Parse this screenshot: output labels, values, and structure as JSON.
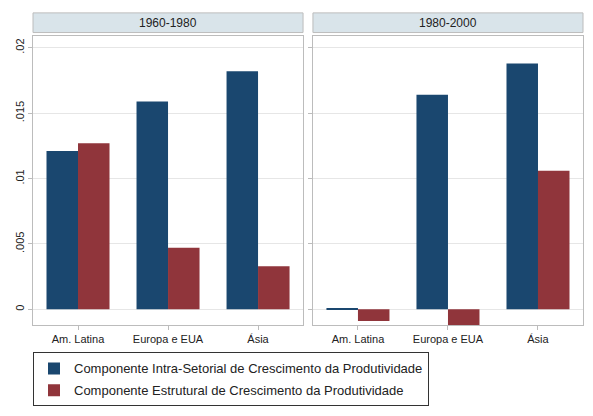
{
  "chart_data": [
    {
      "type": "bar",
      "title": "1960-1980",
      "categories": [
        "Am. Latina",
        "Europa e EUA",
        "Ásia"
      ],
      "series": [
        {
          "name": "Componente Intra-Setorial de Crescimento da Produtividade",
          "color": "#1a476f",
          "values": [
            0.0121,
            0.0159,
            0.0182
          ]
        },
        {
          "name": "Componente Estrutural de Crescimento da Produtividade",
          "color": "#90353b",
          "values": [
            0.0127,
            0.0047,
            0.0033
          ]
        }
      ],
      "ylim": [
        -0.0012,
        0.0209
      ],
      "yticks": [
        0,
        {
          "value": 0.005,
          "label": ".005"
        },
        {
          "value": 0.01,
          "label": ".01"
        },
        {
          "value": 0.015,
          "label": ".015"
        },
        {
          "value": 0.02,
          "label": ".02"
        }
      ],
      "grid": true,
      "legend": "bottom"
    },
    {
      "type": "bar",
      "title": "1980-2000",
      "categories": [
        "Am. Latina",
        "Europa e EUA",
        "Ásia"
      ],
      "series": [
        {
          "name": "Componente Intra-Setorial de Crescimento da Produtividade",
          "color": "#1a476f",
          "values": [
            0.0001,
            0.0164,
            0.0188
          ]
        },
        {
          "name": "Componente Estrutural de Crescimento da Produtividade",
          "color": "#90353b",
          "values": [
            -0.0009,
            -0.0012,
            0.0106
          ]
        }
      ],
      "ylim": [
        -0.0012,
        0.0209
      ],
      "yticks": [
        0,
        {
          "value": 0.005,
          "label": ".005"
        },
        {
          "value": 0.01,
          "label": ".01"
        },
        {
          "value": 0.015,
          "label": ".015"
        },
        {
          "value": 0.02,
          "label": ".02"
        }
      ],
      "grid": true,
      "legend": "bottom"
    }
  ]
}
